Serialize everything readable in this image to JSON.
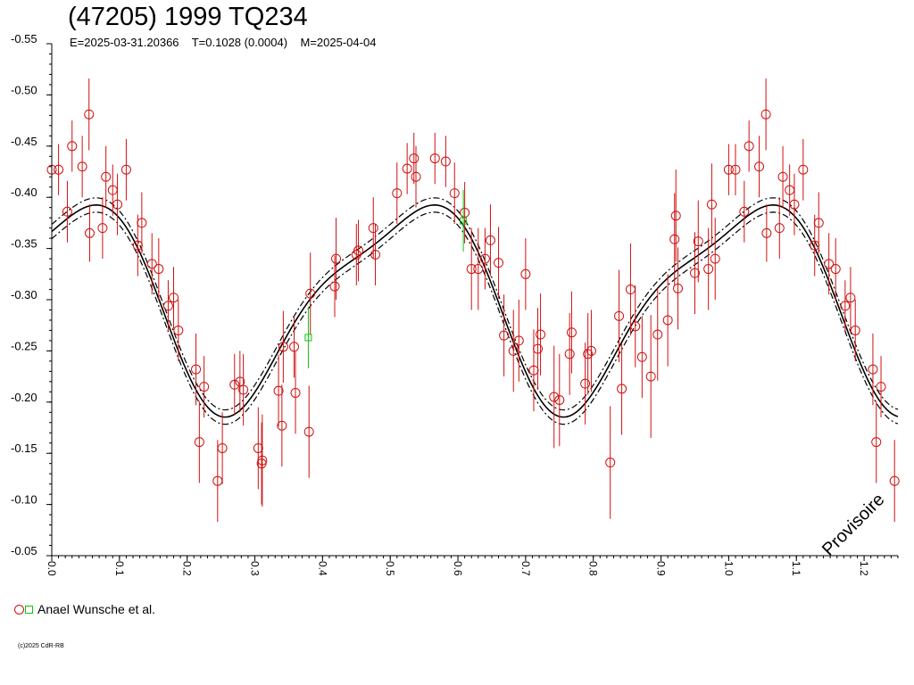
{
  "chart_data": {
    "type": "scatter",
    "title": "(47205) 1999 TQ234",
    "subtitle": "E=2025-03-31.20366    T=0.1028 (0.0004)    M=2025-04-04",
    "xlabel": "",
    "ylabel": "",
    "xlim": [
      0.0,
      1.25
    ],
    "ylim": [
      -0.55,
      -0.05
    ],
    "y_inverted": true,
    "grid": false,
    "x_ticks": [
      "0.0",
      "0.1",
      "0.2",
      "0.3",
      "0.4",
      "0.5",
      "0.6",
      "0.7",
      "0.8",
      "0.9",
      "1.0",
      "1.1",
      "1.2"
    ],
    "y_ticks": [
      "-0.55",
      "-0.50",
      "-0.45",
      "-0.40",
      "-0.35",
      "-0.30",
      "-0.25",
      "-0.20",
      "-0.15",
      "-0.10",
      "-0.05"
    ],
    "legend": {
      "placement": "bottom-left",
      "label": "Anael Wunsche et al."
    },
    "fit": {
      "mean": -0.3,
      "amp1": 0.095,
      "phase1": 1.1,
      "amp2": 0.025,
      "phase2": 1.9,
      "band": 0.007
    },
    "series": [
      {
        "name": "Anael Wunsche et al.",
        "color": "#d01010",
        "marker": "circle",
        "points": [
          [
            0.0,
            -0.427,
            0.025
          ],
          [
            0.01,
            -0.427,
            0.025
          ],
          [
            0.023,
            -0.386,
            0.03
          ],
          [
            0.03,
            -0.45,
            0.025
          ],
          [
            0.045,
            -0.43,
            0.03
          ],
          [
            0.055,
            -0.481,
            0.035
          ],
          [
            0.056,
            -0.365,
            0.028
          ],
          [
            0.075,
            -0.37,
            0.03
          ],
          [
            0.08,
            -0.42,
            0.03
          ],
          [
            0.09,
            -0.407,
            0.025
          ],
          [
            0.097,
            -0.393,
            0.03
          ],
          [
            0.11,
            -0.427,
            0.03
          ],
          [
            0.127,
            -0.353,
            0.03
          ],
          [
            0.133,
            -0.375,
            0.03
          ],
          [
            0.148,
            -0.335,
            0.03
          ],
          [
            0.158,
            -0.33,
            0.03
          ],
          [
            0.172,
            -0.294,
            0.025
          ],
          [
            0.18,
            -0.302,
            0.03
          ],
          [
            0.187,
            -0.27,
            0.03
          ],
          [
            0.213,
            -0.232,
            0.035
          ],
          [
            0.218,
            -0.161,
            0.04
          ],
          [
            0.225,
            -0.215,
            0.03
          ],
          [
            0.245,
            -0.123,
            0.04
          ],
          [
            0.252,
            -0.155,
            0.035
          ],
          [
            0.27,
            -0.217,
            0.03
          ],
          [
            0.278,
            -0.22,
            0.03
          ],
          [
            0.283,
            -0.212,
            0.035
          ],
          [
            0.305,
            -0.155,
            0.04
          ],
          [
            0.31,
            -0.14,
            0.04
          ],
          [
            0.311,
            -0.143,
            0.045
          ],
          [
            0.335,
            -0.211,
            0.035
          ],
          [
            0.34,
            -0.177,
            0.04
          ],
          [
            0.342,
            -0.254,
            0.035
          ],
          [
            0.358,
            -0.254,
            0.03
          ],
          [
            0.36,
            -0.209,
            0.04
          ],
          [
            0.38,
            -0.171,
            0.045
          ],
          [
            0.382,
            -0.306,
            0.04
          ],
          [
            0.418,
            -0.313,
            0.03
          ],
          [
            0.42,
            -0.34,
            0.04
          ],
          [
            0.45,
            -0.344,
            0.03
          ],
          [
            0.453,
            -0.348,
            0.03
          ],
          [
            0.475,
            -0.37,
            0.03
          ],
          [
            0.478,
            -0.344,
            0.03
          ],
          [
            0.51,
            -0.404,
            0.03
          ],
          [
            0.525,
            -0.428,
            0.025
          ],
          [
            0.535,
            -0.438,
            0.025
          ],
          [
            0.538,
            -0.42,
            0.03
          ],
          [
            0.566,
            -0.438,
            0.025
          ],
          [
            0.582,
            -0.435,
            0.025
          ],
          [
            0.595,
            -0.404,
            0.03
          ],
          [
            0.61,
            -0.385,
            0.03
          ],
          [
            0.62,
            -0.33,
            0.04
          ],
          [
            0.63,
            -0.33,
            0.04
          ],
          [
            0.64,
            -0.34,
            0.03
          ],
          [
            0.648,
            -0.358,
            0.035
          ],
          [
            0.66,
            -0.336,
            0.035
          ],
          [
            0.668,
            -0.265,
            0.04
          ],
          [
            0.682,
            -0.25,
            0.04
          ],
          [
            0.69,
            -0.26,
            0.04
          ],
          [
            0.7,
            -0.325,
            0.035
          ],
          [
            0.712,
            -0.231,
            0.04
          ],
          [
            0.718,
            -0.252,
            0.04
          ],
          [
            0.722,
            -0.266,
            0.04
          ],
          [
            0.742,
            -0.205,
            0.05
          ],
          [
            0.75,
            -0.202,
            0.045
          ],
          [
            0.765,
            -0.247,
            0.04
          ],
          [
            0.768,
            -0.268,
            0.04
          ],
          [
            0.788,
            -0.218,
            0.04
          ],
          [
            0.792,
            -0.247,
            0.04
          ],
          [
            0.797,
            -0.25,
            0.04
          ],
          [
            0.825,
            -0.141,
            0.055
          ],
          [
            0.838,
            -0.284,
            0.045
          ],
          [
            0.842,
            -0.213,
            0.045
          ],
          [
            0.855,
            -0.31,
            0.045
          ],
          [
            0.862,
            -0.274,
            0.04
          ],
          [
            0.872,
            -0.244,
            0.04
          ],
          [
            0.885,
            -0.225,
            0.06
          ],
          [
            0.895,
            -0.266,
            0.045
          ],
          [
            0.91,
            -0.28,
            0.045
          ],
          [
            0.92,
            -0.359,
            0.045
          ],
          [
            0.922,
            -0.382,
            0.045
          ],
          [
            0.925,
            -0.311,
            0.04
          ],
          [
            0.95,
            -0.326,
            0.04
          ],
          [
            0.955,
            -0.357,
            0.04
          ],
          [
            0.97,
            -0.33,
            0.04
          ],
          [
            0.975,
            -0.393,
            0.04
          ],
          [
            0.98,
            -0.34,
            0.04
          ],
          [
            1.0,
            -0.427,
            0.025
          ],
          [
            1.01,
            -0.427,
            0.025
          ],
          [
            1.023,
            -0.386,
            0.03
          ],
          [
            1.03,
            -0.45,
            0.025
          ],
          [
            1.045,
            -0.43,
            0.03
          ],
          [
            1.055,
            -0.481,
            0.035
          ],
          [
            1.056,
            -0.365,
            0.028
          ],
          [
            1.075,
            -0.37,
            0.03
          ],
          [
            1.08,
            -0.42,
            0.03
          ],
          [
            1.09,
            -0.407,
            0.025
          ],
          [
            1.097,
            -0.393,
            0.03
          ],
          [
            1.11,
            -0.427,
            0.03
          ],
          [
            1.127,
            -0.353,
            0.03
          ],
          [
            1.133,
            -0.375,
            0.03
          ],
          [
            1.148,
            -0.335,
            0.03
          ],
          [
            1.158,
            -0.33,
            0.03
          ],
          [
            1.172,
            -0.294,
            0.025
          ],
          [
            1.18,
            -0.302,
            0.03
          ],
          [
            1.187,
            -0.27,
            0.03
          ],
          [
            1.213,
            -0.232,
            0.035
          ],
          [
            1.218,
            -0.161,
            0.04
          ],
          [
            1.225,
            -0.215,
            0.03
          ],
          [
            1.245,
            -0.123,
            0.04
          ]
        ]
      },
      {
        "name": "",
        "color": "#10c010",
        "marker": "square",
        "points": [
          [
            0.379,
            -0.263,
            0.03
          ],
          [
            0.608,
            -0.377,
            0.03
          ]
        ]
      }
    ]
  },
  "copyright": "(c)2025 CdR-RB",
  "watermark": "Provisoire"
}
